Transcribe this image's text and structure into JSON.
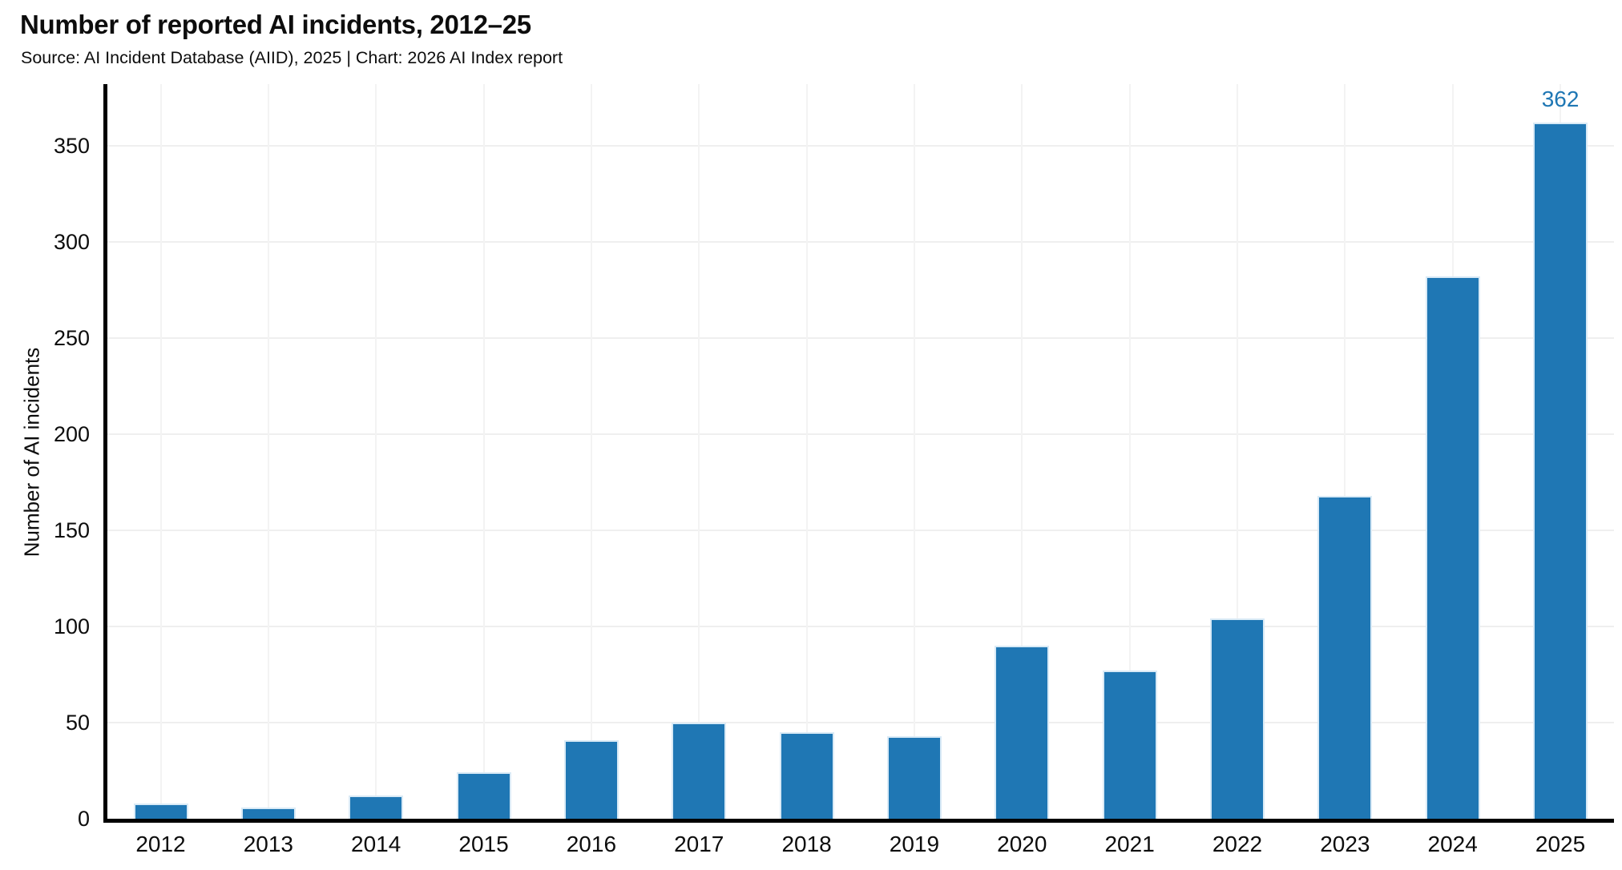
{
  "chart_data": {
    "type": "bar",
    "title": "Number of reported AI incidents, 2012–25",
    "subtitle": "Source: AI Incident Database (AIID), 2025 | Chart: 2026 AI Index report",
    "ylabel": "Number of AI incidents",
    "xlabel": "",
    "categories": [
      "2012",
      "2013",
      "2014",
      "2015",
      "2016",
      "2017",
      "2018",
      "2019",
      "2020",
      "2021",
      "2022",
      "2023",
      "2024",
      "2025"
    ],
    "values": [
      8,
      6,
      12,
      24,
      41,
      50,
      45,
      43,
      90,
      77,
      104,
      168,
      282,
      362
    ],
    "y_ticks": [
      0,
      50,
      100,
      150,
      200,
      250,
      300,
      350
    ],
    "ylim": [
      0,
      382
    ],
    "legend_position": "none",
    "grid": "light horizontal lines at each y tick and light vertical line at each category",
    "annotations": [
      {
        "category": "2025",
        "text": "362"
      }
    ],
    "colors": {
      "bar_fill": "#1f77b4",
      "bar_edge": "#d9eaf6",
      "annotation_text": "#1f77b4",
      "hgrid": "#efefef",
      "vgrid": "#f3f3f3",
      "axis": "#000000",
      "text": "#0d0d0d"
    }
  }
}
